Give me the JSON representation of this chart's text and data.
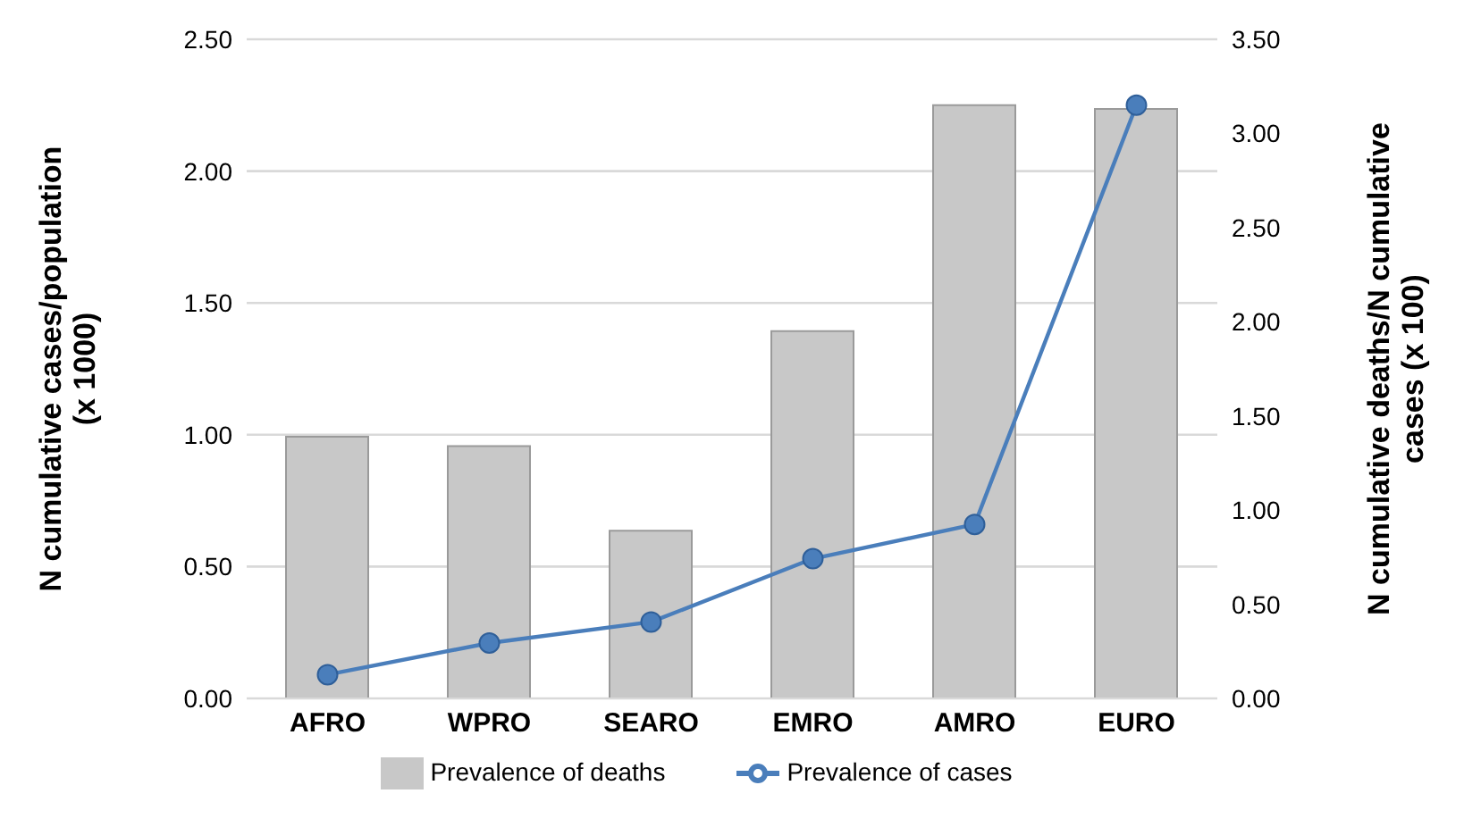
{
  "chart_data": {
    "type": "bar",
    "categories": [
      "AFRO",
      "WPRO",
      "SEARO",
      "EMRO",
      "AMRO",
      "EURO"
    ],
    "series": [
      {
        "name": "Prevalence of deaths",
        "axis": "y2",
        "color": "#c8c8c8",
        "values": [
          1.39,
          1.34,
          0.89,
          1.95,
          3.15,
          3.13
        ]
      },
      {
        "name": "Prevalence of cases",
        "type": "line",
        "color": "#4a7ebb",
        "values": [
          0.09,
          0.21,
          0.29,
          0.53,
          0.66,
          2.25
        ]
      }
    ],
    "ylabel": "N cumulative cases/population (x 1000)",
    "y2label": "N cumulative deaths/N cumulative cases (x 100)",
    "ylim": [
      0,
      2.5
    ],
    "yticks": [
      {
        "value": 0,
        "label": "0.00"
      },
      {
        "value": 0.5,
        "label": "0.50"
      },
      {
        "value": 1,
        "label": "1.00"
      },
      {
        "value": 1.5,
        "label": "1.50"
      },
      {
        "value": 2,
        "label": "2.00"
      },
      {
        "value": 2.5,
        "label": "2.50"
      }
    ],
    "y2lim": [
      0,
      3.5
    ],
    "y2ticks": [
      {
        "value": 0,
        "label": "0.00"
      },
      {
        "value": 0.5,
        "label": "0.50"
      },
      {
        "value": 1,
        "label": "1.00"
      },
      {
        "value": 1.5,
        "label": "1.50"
      },
      {
        "value": 2,
        "label": "2.00"
      },
      {
        "value": 2.5,
        "label": "2.50"
      },
      {
        "value": 3,
        "label": "3.00"
      },
      {
        "value": 3.5,
        "label": "3.50"
      }
    ],
    "grid": "y",
    "legend": "bottom",
    "marker": "circle",
    "line_style": "solid"
  }
}
